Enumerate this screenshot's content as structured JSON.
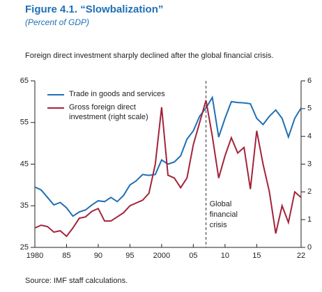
{
  "chart_data": {
    "type": "line",
    "title": "Figure 4.1.  “Slowbalization”",
    "subtitle": "(Percent of GDP)",
    "description": "Foreign direct investment sharply declined after the global financial crisis.",
    "source": "Source: IMF staff calculations.",
    "annotation": {
      "x": 2007,
      "lines": [
        "Global",
        "financial",
        "crisis"
      ]
    },
    "x": [
      1980,
      1981,
      1982,
      1983,
      1984,
      1985,
      1986,
      1987,
      1988,
      1989,
      1990,
      1991,
      1992,
      1993,
      1994,
      1995,
      1996,
      1997,
      1998,
      1999,
      2000,
      2001,
      2002,
      2003,
      2004,
      2005,
      2006,
      2007,
      2008,
      2009,
      2010,
      2011,
      2012,
      2013,
      2014,
      2015,
      2016,
      2017,
      2018,
      2019,
      2020,
      2021,
      2022
    ],
    "series": [
      {
        "name": "Trade in goods and services",
        "color": "#1f6fb5",
        "axis": "y",
        "values": [
          39.5,
          38.8,
          37,
          35.2,
          35.8,
          34.5,
          32.5,
          33.5,
          34,
          35.2,
          36.2,
          36,
          37,
          36,
          37.5,
          40,
          41,
          42.5,
          42.3,
          42.5,
          46,
          45,
          45.5,
          47,
          51,
          53,
          56.5,
          58.5,
          61,
          51.5,
          56,
          60,
          59.8,
          59.7,
          59.5,
          56,
          54.5,
          56.5,
          58,
          56,
          51.5,
          56,
          58.5
        ]
      },
      {
        "name": "Gross foreign direct investment (right scale)",
        "color": "#a3233a",
        "axis": "y2",
        "values": [
          0.7,
          0.8,
          0.75,
          0.55,
          0.6,
          0.4,
          0.7,
          1.05,
          1.1,
          1.3,
          1.4,
          0.95,
          0.95,
          1.1,
          1.25,
          1.5,
          1.6,
          1.7,
          1.95,
          3.0,
          5.05,
          2.6,
          2.5,
          2.15,
          2.5,
          3.7,
          4.5,
          5.3,
          4.0,
          2.5,
          3.3,
          3.95,
          3.4,
          3.6,
          2.1,
          4.2,
          3.0,
          2.0,
          0.5,
          1.5,
          0.9,
          2.0,
          1.8
        ]
      }
    ],
    "xlim": [
      1980,
      2022
    ],
    "xticks": [
      1980,
      {
        "value": 1985,
        "label": "85"
      },
      {
        "value": 1990,
        "label": "90"
      },
      {
        "value": 1995,
        "label": "95"
      },
      2000,
      {
        "value": 2005,
        "label": "05"
      },
      {
        "value": 2010,
        "label": "10"
      },
      {
        "value": 2015,
        "label": "15"
      },
      {
        "value": 2022,
        "label": "22"
      }
    ],
    "ylim": [
      25,
      65
    ],
    "yticks": [
      25,
      35,
      45,
      55,
      65
    ],
    "y2lim": [
      0,
      6
    ],
    "y2ticks": [
      0,
      1,
      2,
      3,
      4,
      5,
      6
    ]
  }
}
